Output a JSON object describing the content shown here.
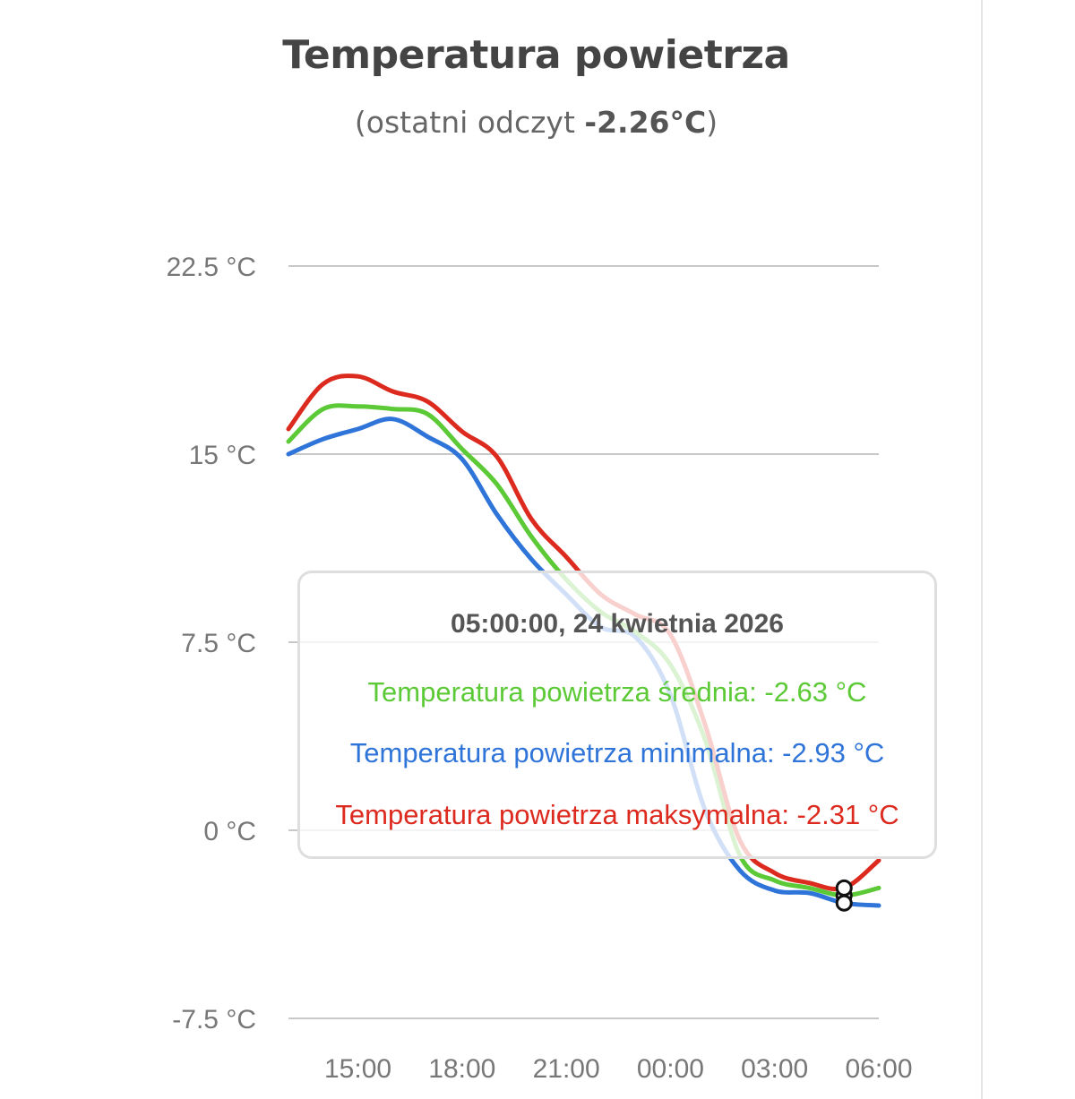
{
  "header": {
    "title": "Temperatura powietrza",
    "subtitle_prefix": "(ostatni odczyt ",
    "subtitle_value": "-2.26°C",
    "subtitle_suffix": ")"
  },
  "tooltip": {
    "date": "05:00:00, 24 kwietnia 2026",
    "rows": [
      {
        "label": "Temperatura powietrza średnia: -2.63 °C",
        "color": "#5cc936"
      },
      {
        "label": "Temperatura powietrza minimalna: -2.93 °C",
        "color": "#2f74d8"
      },
      {
        "label": "Temperatura powietrza maksymalna: -2.31 °C",
        "color": "#dd2a1f"
      }
    ]
  },
  "chart_data": {
    "type": "line",
    "title": "Temperatura powietrza",
    "subtitle": "(ostatni odczyt -2.26°C)",
    "x": [
      "13:00",
      "14:00",
      "15:00",
      "16:00",
      "17:00",
      "18:00",
      "19:00",
      "20:00",
      "21:00",
      "22:00",
      "23:00",
      "00:00",
      "01:00",
      "02:00",
      "03:00",
      "04:00",
      "05:00",
      "06:00"
    ],
    "x_ticks": [
      "15:00",
      "18:00",
      "21:00",
      "00:00",
      "03:00",
      "06:00"
    ],
    "y_ticks": [
      22.5,
      15,
      7.5,
      0,
      -7.5
    ],
    "y_tick_labels": [
      "22.5 °C",
      "15 °C",
      "7.5 °C",
      "0 °C",
      "-7.5 °C"
    ],
    "ylim": [
      -7.5,
      22.5
    ],
    "grid": true,
    "series": [
      {
        "name": "Temperatura powietrza średnia",
        "color": "#5cc936",
        "values": [
          15.5,
          16.8,
          16.9,
          16.8,
          16.6,
          15.2,
          13.8,
          11.7,
          10.0,
          8.7,
          7.9,
          6.6,
          3.6,
          -1.0,
          -2.0,
          -2.3,
          -2.6,
          -2.3
        ]
      },
      {
        "name": "Temperatura powietrza minimalna",
        "color": "#2f74d8",
        "values": [
          15.0,
          15.6,
          16.0,
          16.4,
          15.7,
          14.8,
          12.6,
          10.8,
          9.4,
          8.1,
          7.7,
          5.4,
          0.8,
          -1.6,
          -2.4,
          -2.5,
          -2.9,
          -3.0
        ]
      },
      {
        "name": "Temperatura powietrza maksymalna",
        "color": "#dd2a1f",
        "values": [
          16.0,
          17.8,
          18.1,
          17.5,
          17.1,
          15.9,
          14.9,
          12.4,
          10.9,
          9.4,
          8.6,
          7.8,
          4.2,
          -0.4,
          -1.7,
          -2.1,
          -2.3,
          -1.2
        ]
      }
    ],
    "hover_x": "05:00"
  }
}
